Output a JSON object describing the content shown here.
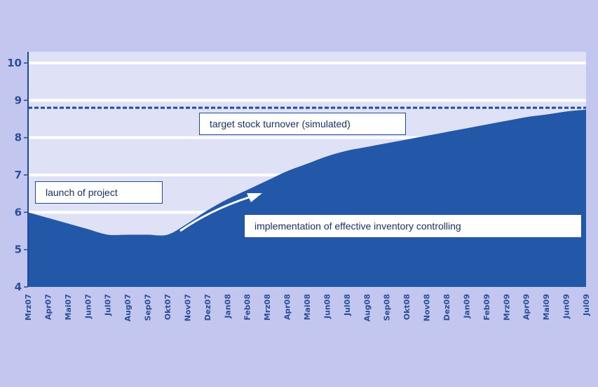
{
  "chart_data": {
    "type": "area",
    "x": [
      "Mrz07",
      "Apr07",
      "Mai07",
      "Jun07",
      "Jul07",
      "Aug07",
      "Sep07",
      "Okt07",
      "Nov07",
      "Dez07",
      "Jan08",
      "Feb08",
      "Mrz08",
      "Apr08",
      "Mai08",
      "Jun08",
      "Jul08",
      "Aug08",
      "Sep08",
      "Okt08",
      "Nov08",
      "Dez08",
      "Jan09",
      "Feb09",
      "Mrz09",
      "Apr09",
      "Mai09",
      "Jun09",
      "Jul09"
    ],
    "x_labels": [
      "Mrz07",
      "Apr07",
      "Mai07",
      "Jun07",
      "Jul07",
      "Aug07",
      "Sep07",
      "Okt07",
      "Nov07",
      "Dez07",
      "Jan08",
      "Feb08",
      "Mrz08",
      "Apr08",
      "Mai08",
      "Jun08",
      "Jul08",
      "Aug08",
      "Sep08",
      "Okt08",
      "Nov08",
      "Dez08",
      "Jan09",
      "Feb09",
      "Mrz09",
      "Apr09",
      "Mai09",
      "Jun09",
      "Jul09"
    ],
    "values": [
      6.0,
      5.85,
      5.7,
      5.55,
      5.4,
      5.4,
      5.4,
      5.4,
      5.7,
      6.05,
      6.35,
      6.6,
      6.85,
      7.1,
      7.3,
      7.5,
      7.65,
      7.75,
      7.85,
      7.95,
      8.05,
      8.15,
      8.25,
      8.35,
      8.45,
      8.55,
      8.62,
      8.7,
      8.75
    ],
    "y_ticks": [
      4,
      5,
      6,
      7,
      8,
      9,
      10
    ],
    "ylim": [
      4,
      10.3
    ],
    "target": 8.8,
    "grid": true,
    "title": "",
    "xlabel": "",
    "ylabel": "",
    "annotations": {
      "target": "target stock turnover (simulated)",
      "launch": "launch of project",
      "implementation": "implementation of effective inventory controlling"
    },
    "colors": {
      "page_background": "#c3c6ef",
      "plot_background": "#dfe1f6",
      "area": "#2357a8",
      "gridline": "#ffffff",
      "axis_text": "#2a4f9a"
    }
  }
}
